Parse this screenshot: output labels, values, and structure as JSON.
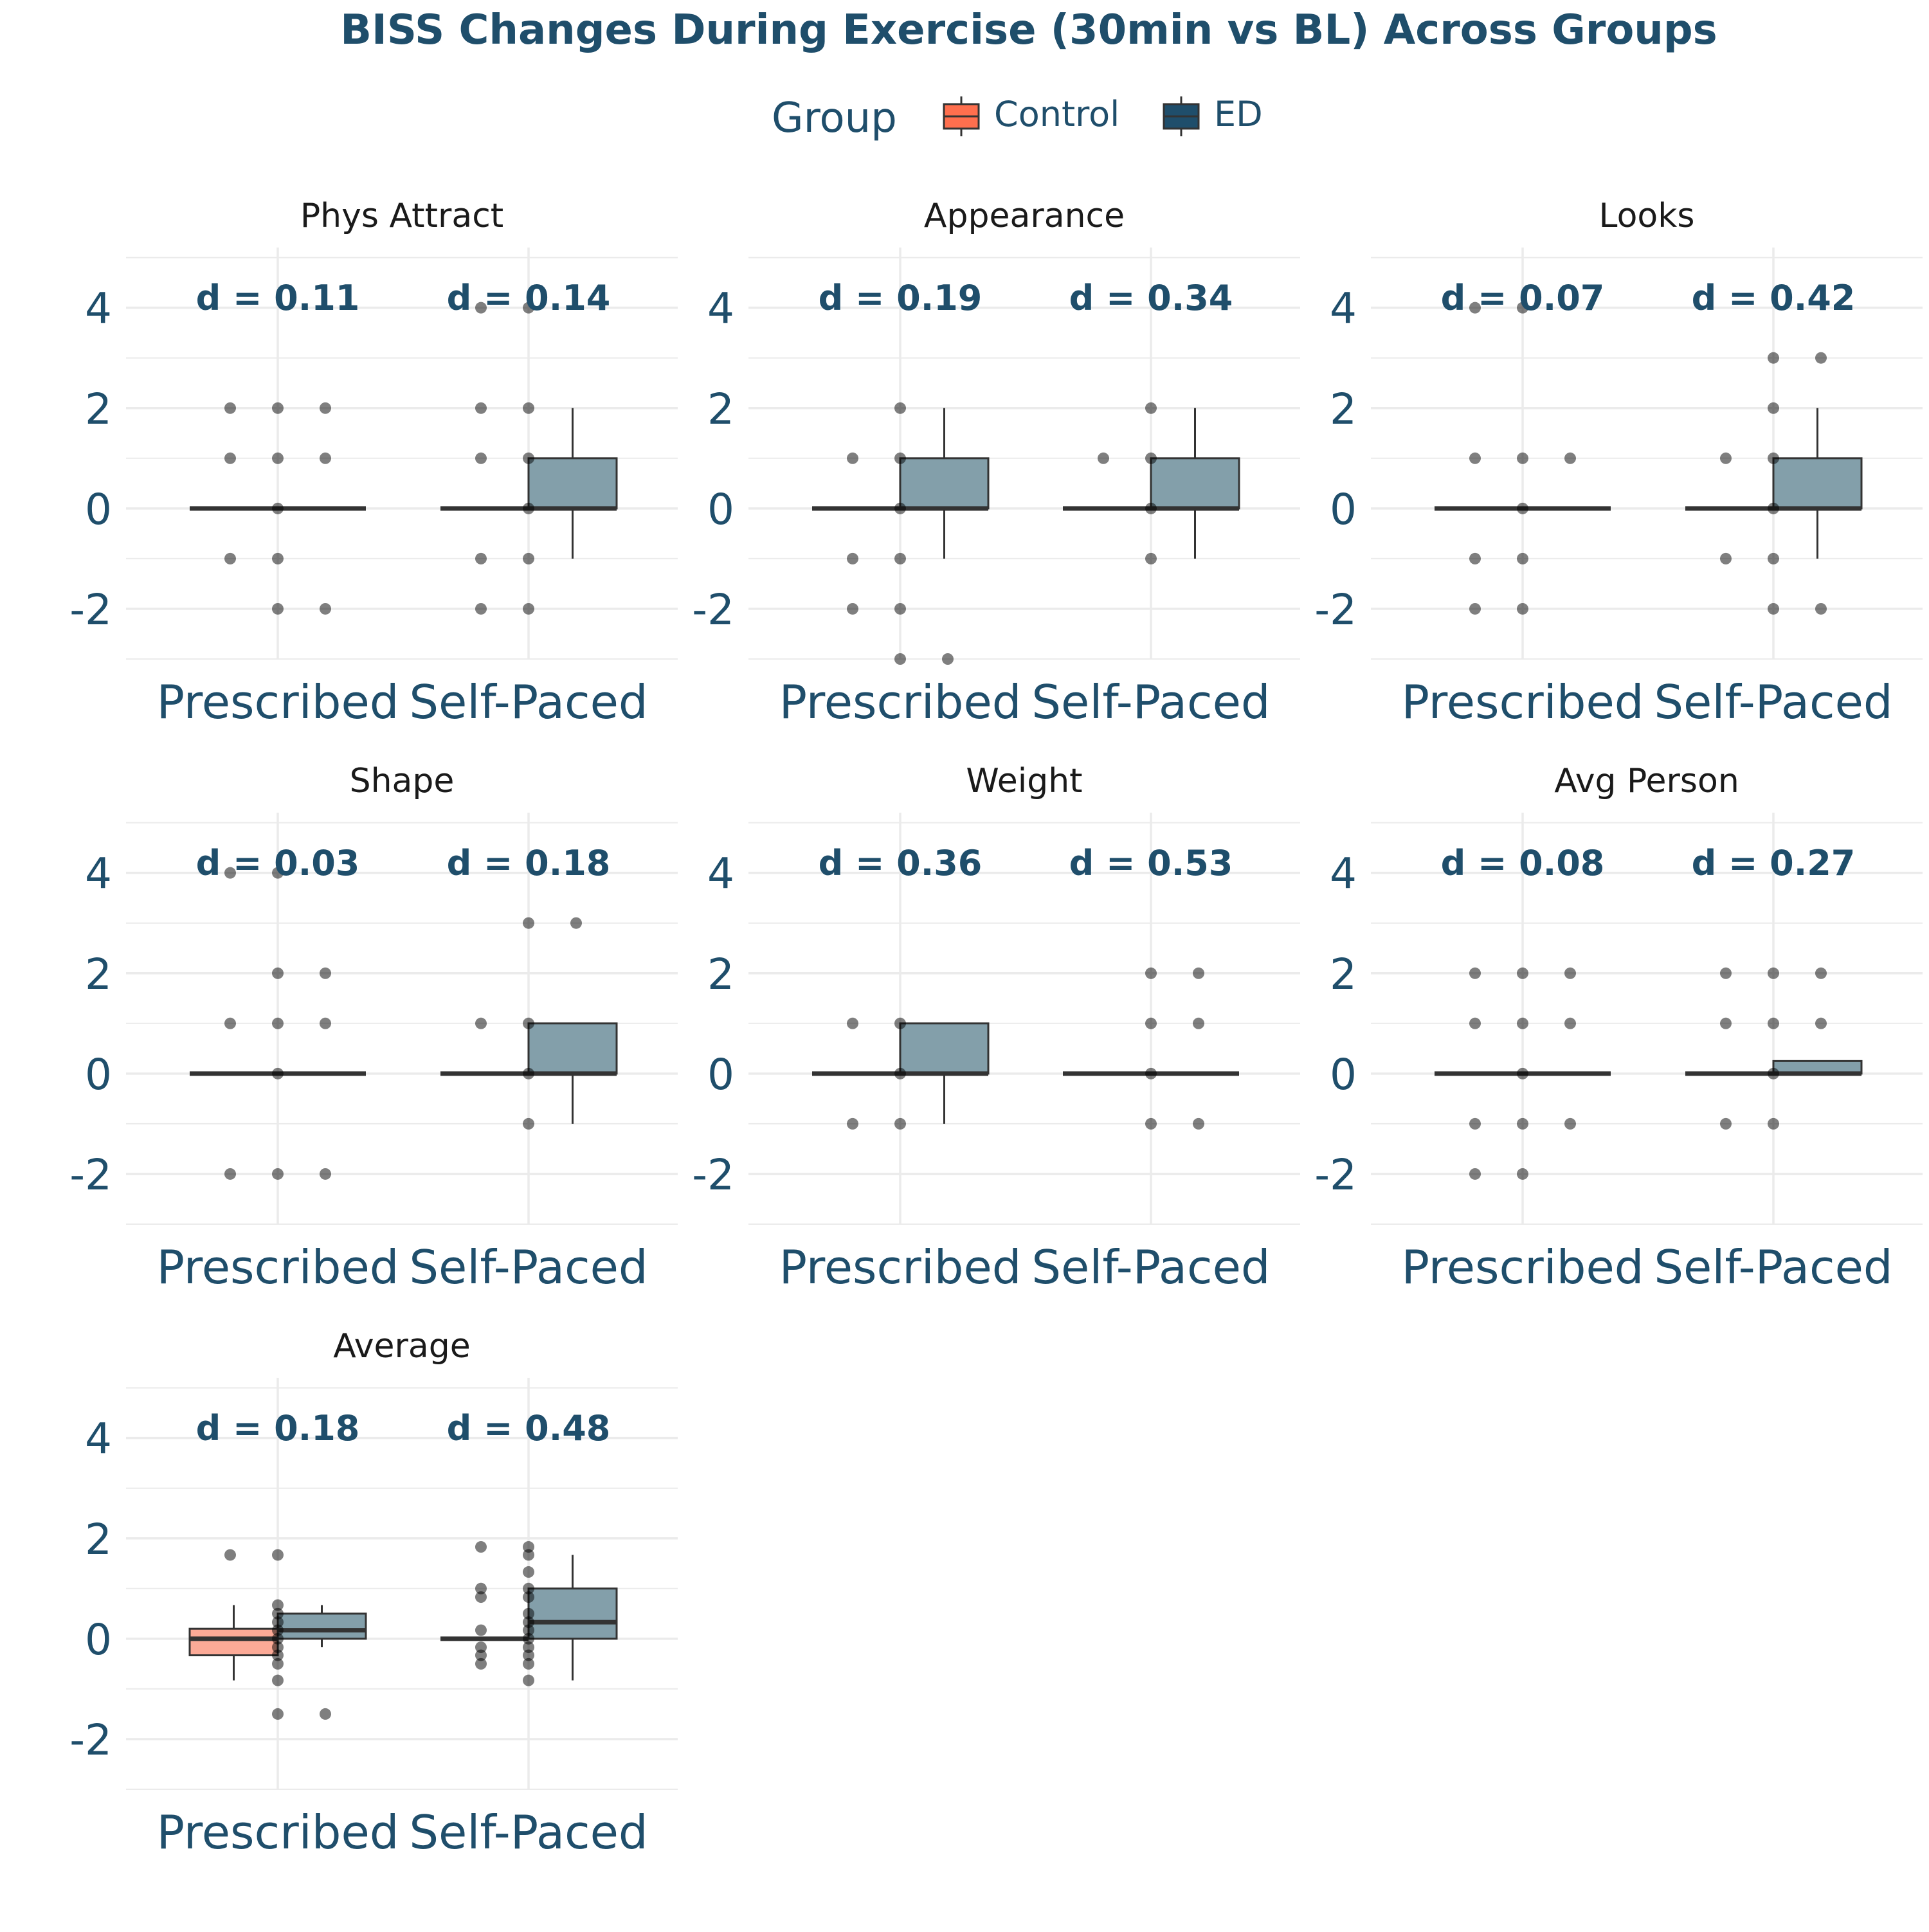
{
  "chart_data": {
    "type": "box",
    "title": "BISS Changes During Exercise (30min vs BL) Across Groups",
    "legend": {
      "title": "Group",
      "position": "top",
      "entries": [
        {
          "name": "Control",
          "color": "#FF6F4E"
        },
        {
          "name": "ED",
          "color": "#1F4E6B"
        }
      ]
    },
    "colors": {
      "text": "#1F4E6B",
      "control_fill": "#FCAA97",
      "ed_fill": "#839FAA",
      "point": "#000000",
      "grid": "#EBEBEB"
    },
    "ylim": [
      -3.0,
      5.2
    ],
    "y_ticks": [
      -2,
      0,
      2,
      4
    ],
    "y_tick_labels": [
      "-2",
      "0",
      "2",
      "4"
    ],
    "categories": [
      "Prescribed",
      "Self-Paced"
    ],
    "panels": [
      {
        "name": "Phys Attract",
        "effect_sizes": [
          "d = 0.11",
          "d = 0.14"
        ],
        "boxes": [
          {
            "category": "Prescribed",
            "group": "Control",
            "q1": 0,
            "median": 0,
            "q3": 0,
            "whisker_low": 0,
            "whisker_high": 0
          },
          {
            "category": "Prescribed",
            "group": "ED",
            "q1": 0,
            "median": 0,
            "q3": 0,
            "whisker_low": 0,
            "whisker_high": 0
          },
          {
            "category": "Self-Paced",
            "group": "Control",
            "q1": 0,
            "median": 0,
            "q3": 0,
            "whisker_low": 0,
            "whisker_high": 0
          },
          {
            "category": "Self-Paced",
            "group": "ED",
            "q1": 0,
            "median": 0,
            "q3": 1,
            "whisker_low": -1,
            "whisker_high": 2
          }
        ],
        "points": [
          {
            "category": "Prescribed",
            "offset": -1,
            "values": [
              2,
              1,
              -1
            ]
          },
          {
            "category": "Prescribed",
            "offset": 0,
            "values": [
              2,
              1,
              0,
              -1,
              -2
            ]
          },
          {
            "category": "Prescribed",
            "offset": 1,
            "values": [
              2,
              1,
              -2
            ]
          },
          {
            "category": "Self-Paced",
            "offset": -1,
            "values": [
              4,
              2,
              1,
              -1,
              -2
            ]
          },
          {
            "category": "Self-Paced",
            "offset": 0,
            "values": [
              4,
              2,
              1,
              0,
              -1,
              -2
            ]
          }
        ]
      },
      {
        "name": "Appearance",
        "effect_sizes": [
          "d = 0.19",
          "d = 0.34"
        ],
        "boxes": [
          {
            "category": "Prescribed",
            "group": "Control",
            "q1": 0,
            "median": 0,
            "q3": 0,
            "whisker_low": 0,
            "whisker_high": 0
          },
          {
            "category": "Prescribed",
            "group": "ED",
            "q1": 0,
            "median": 0,
            "q3": 1,
            "whisker_low": -1,
            "whisker_high": 2
          },
          {
            "category": "Self-Paced",
            "group": "Control",
            "q1": 0,
            "median": 0,
            "q3": 0,
            "whisker_low": 0,
            "whisker_high": 0
          },
          {
            "category": "Self-Paced",
            "group": "ED",
            "q1": 0,
            "median": 0,
            "q3": 1,
            "whisker_low": -1,
            "whisker_high": 2
          }
        ],
        "points": [
          {
            "category": "Prescribed",
            "offset": -1,
            "values": [
              1,
              -1,
              -2
            ]
          },
          {
            "category": "Prescribed",
            "offset": 0,
            "values": [
              2,
              1,
              0,
              -1,
              -2,
              -3
            ]
          },
          {
            "category": "Prescribed",
            "offset": 1,
            "values": [
              -3
            ]
          },
          {
            "category": "Self-Paced",
            "offset": -1,
            "values": [
              1
            ]
          },
          {
            "category": "Self-Paced",
            "offset": 0,
            "values": [
              2,
              1,
              0,
              -1
            ]
          }
        ]
      },
      {
        "name": "Looks",
        "effect_sizes": [
          "d = 0.07",
          "d = 0.42"
        ],
        "boxes": [
          {
            "category": "Prescribed",
            "group": "Control",
            "q1": 0,
            "median": 0,
            "q3": 0,
            "whisker_low": 0,
            "whisker_high": 0
          },
          {
            "category": "Prescribed",
            "group": "ED",
            "q1": 0,
            "median": 0,
            "q3": 0,
            "whisker_low": 0,
            "whisker_high": 0
          },
          {
            "category": "Self-Paced",
            "group": "Control",
            "q1": 0,
            "median": 0,
            "q3": 0,
            "whisker_low": 0,
            "whisker_high": 0
          },
          {
            "category": "Self-Paced",
            "group": "ED",
            "q1": 0,
            "median": 0,
            "q3": 1,
            "whisker_low": -1,
            "whisker_high": 2
          }
        ],
        "points": [
          {
            "category": "Prescribed",
            "offset": -1,
            "values": [
              4,
              1,
              -1,
              -2
            ]
          },
          {
            "category": "Prescribed",
            "offset": 0,
            "values": [
              4,
              1,
              0,
              -1,
              -2
            ]
          },
          {
            "category": "Prescribed",
            "offset": 1,
            "values": [
              1
            ]
          },
          {
            "category": "Self-Paced",
            "offset": -1,
            "values": [
              1,
              -1
            ]
          },
          {
            "category": "Self-Paced",
            "offset": 0,
            "values": [
              3,
              2,
              1,
              0,
              -1,
              -2
            ]
          },
          {
            "category": "Self-Paced",
            "offset": 1,
            "values": [
              3,
              -2
            ]
          }
        ]
      },
      {
        "name": "Shape",
        "effect_sizes": [
          "d = 0.03",
          "d = 0.18"
        ],
        "boxes": [
          {
            "category": "Prescribed",
            "group": "Control",
            "q1": 0,
            "median": 0,
            "q3": 0,
            "whisker_low": 0,
            "whisker_high": 0
          },
          {
            "category": "Prescribed",
            "group": "ED",
            "q1": 0,
            "median": 0,
            "q3": 0,
            "whisker_low": 0,
            "whisker_high": 0
          },
          {
            "category": "Self-Paced",
            "group": "Control",
            "q1": 0,
            "median": 0,
            "q3": 0,
            "whisker_low": 0,
            "whisker_high": 0
          },
          {
            "category": "Self-Paced",
            "group": "ED",
            "q1": 0,
            "median": 0,
            "q3": 1,
            "whisker_low": -1,
            "whisker_high": 1
          }
        ],
        "points": [
          {
            "category": "Prescribed",
            "offset": -1,
            "values": [
              4,
              1,
              -2
            ]
          },
          {
            "category": "Prescribed",
            "offset": 0,
            "values": [
              4,
              2,
              1,
              0,
              -2
            ]
          },
          {
            "category": "Prescribed",
            "offset": 1,
            "values": [
              2,
              1,
              -2
            ]
          },
          {
            "category": "Self-Paced",
            "offset": -1,
            "values": [
              1
            ]
          },
          {
            "category": "Self-Paced",
            "offset": 0,
            "values": [
              3,
              1,
              0,
              -1
            ]
          },
          {
            "category": "Self-Paced",
            "offset": 1,
            "values": [
              3
            ]
          }
        ]
      },
      {
        "name": "Weight",
        "effect_sizes": [
          "d = 0.36",
          "d = 0.53"
        ],
        "boxes": [
          {
            "category": "Prescribed",
            "group": "Control",
            "q1": 0,
            "median": 0,
            "q3": 0,
            "whisker_low": 0,
            "whisker_high": 0
          },
          {
            "category": "Prescribed",
            "group": "ED",
            "q1": 0,
            "median": 0,
            "q3": 1,
            "whisker_low": -1,
            "whisker_high": 1
          },
          {
            "category": "Self-Paced",
            "group": "Control",
            "q1": 0,
            "median": 0,
            "q3": 0,
            "whisker_low": 0,
            "whisker_high": 0
          },
          {
            "category": "Self-Paced",
            "group": "ED",
            "q1": 0,
            "median": 0,
            "q3": 0,
            "whisker_low": 0,
            "whisker_high": 0
          }
        ],
        "points": [
          {
            "category": "Prescribed",
            "offset": -1,
            "values": [
              1,
              -1
            ]
          },
          {
            "category": "Prescribed",
            "offset": 0,
            "values": [
              1,
              0,
              -1
            ]
          },
          {
            "category": "Self-Paced",
            "offset": 0,
            "values": [
              2,
              1,
              0,
              -1
            ]
          },
          {
            "category": "Self-Paced",
            "offset": 1,
            "values": [
              2,
              1,
              -1
            ]
          }
        ]
      },
      {
        "name": "Avg Person",
        "effect_sizes": [
          "d = 0.08",
          "d = 0.27"
        ],
        "boxes": [
          {
            "category": "Prescribed",
            "group": "Control",
            "q1": 0,
            "median": 0,
            "q3": 0,
            "whisker_low": 0,
            "whisker_high": 0
          },
          {
            "category": "Prescribed",
            "group": "ED",
            "q1": 0,
            "median": 0,
            "q3": 0,
            "whisker_low": 0,
            "whisker_high": 0
          },
          {
            "category": "Self-Paced",
            "group": "Control",
            "q1": 0,
            "median": 0,
            "q3": 0,
            "whisker_low": 0,
            "whisker_high": 0
          },
          {
            "category": "Self-Paced",
            "group": "ED",
            "q1": 0,
            "median": 0,
            "q3": 0.25,
            "whisker_low": 0,
            "whisker_high": 0.25
          }
        ],
        "points": [
          {
            "category": "Prescribed",
            "offset": -1,
            "values": [
              2,
              1,
              -1,
              -2
            ]
          },
          {
            "category": "Prescribed",
            "offset": 0,
            "values": [
              2,
              1,
              0,
              -1,
              -2
            ]
          },
          {
            "category": "Prescribed",
            "offset": 1,
            "values": [
              2,
              1,
              -1
            ]
          },
          {
            "category": "Self-Paced",
            "offset": -1,
            "values": [
              2,
              1,
              -1
            ]
          },
          {
            "category": "Self-Paced",
            "offset": 0,
            "values": [
              2,
              1,
              0,
              -1
            ]
          },
          {
            "category": "Self-Paced",
            "offset": 1,
            "values": [
              2,
              1
            ]
          }
        ]
      },
      {
        "name": "Average",
        "effect_sizes": [
          "d = 0.18",
          "d = 0.48"
        ],
        "boxes": [
          {
            "category": "Prescribed",
            "group": "Control",
            "q1": -0.33,
            "median": 0,
            "q3": 0.2,
            "whisker_low": -0.83,
            "whisker_high": 0.67
          },
          {
            "category": "Prescribed",
            "group": "ED",
            "q1": 0,
            "median": 0.17,
            "q3": 0.5,
            "whisker_low": -0.17,
            "whisker_high": 0.67
          },
          {
            "category": "Self-Paced",
            "group": "Control",
            "q1": 0,
            "median": 0,
            "q3": 0,
            "whisker_low": 0,
            "whisker_high": 0
          },
          {
            "category": "Self-Paced",
            "group": "ED",
            "q1": 0,
            "median": 0.33,
            "q3": 1,
            "whisker_low": -0.83,
            "whisker_high": 1.67
          }
        ],
        "points": [
          {
            "category": "Prescribed",
            "offset": -1,
            "values": [
              1.67
            ]
          },
          {
            "category": "Prescribed",
            "offset": 0,
            "values": [
              1.67,
              0.67,
              0.5,
              0.33,
              0.17,
              0,
              -0.17,
              -0.33,
              -0.5,
              -0.83,
              -1.5
            ]
          },
          {
            "category": "Prescribed",
            "offset": 1,
            "values": [
              -1.5
            ]
          },
          {
            "category": "Self-Paced",
            "offset": -1,
            "values": [
              1.83,
              1,
              0.83,
              0.17,
              -0.17,
              -0.33,
              -0.5
            ]
          },
          {
            "category": "Self-Paced",
            "offset": 0,
            "values": [
              1.83,
              1.67,
              1.33,
              1,
              0.83,
              0.5,
              0.33,
              0.17,
              0,
              -0.17,
              -0.33,
              -0.5,
              -0.83
            ]
          }
        ]
      }
    ]
  }
}
